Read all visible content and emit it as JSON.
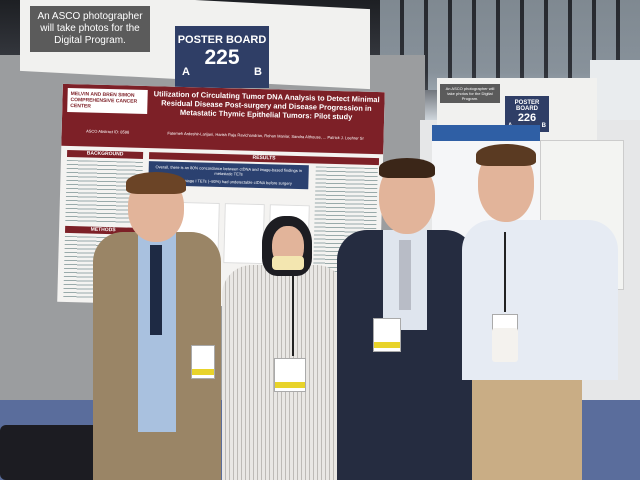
{
  "scene": {
    "description_colors": {
      "board": "#9b9d9f",
      "poster_maroon": "#7d2027",
      "sign_blue": "#2f3e66",
      "carpet": "#5a6d9c"
    }
  },
  "left_board": {
    "photographer_note": "An ASCO photographer will take photos for the Digital Program.",
    "sign_title": "POSTER BOARD",
    "sign_number": "225",
    "side_a": "A",
    "side_b": "B"
  },
  "right_board": {
    "photographer_note": "An ASCO photographer will take photos for the Digital Program.",
    "sign_title": "POSTER BOARD",
    "sign_number": "226",
    "side_a": "A",
    "side_b": "B"
  },
  "poster": {
    "institution": "MELVIN AND BREN SIMON COMPREHENSIVE CANCER CENTER",
    "abstract_id": "ASCO Abstract ID: 8598",
    "title": "Utilization of Circulating Tumor DNA Analysis to Detect Minimal Residual Disease Post-surgery and Disease Progression in Metastatic Thymic Epithelial Tumors: Pilot study",
    "authors": "Fatemeh Ardeshir-Larijani, Harish Raja Ravichandran, Rohan Maniar, Sandra Althouse, ... Patrick J. Loehrer Sr",
    "sections": [
      "BACKGROUND",
      "METHODS",
      "RESULTS"
    ],
    "conclusions": [
      "Overall, there is an 80% concordance between ctDNA and image-based findings in metastatic TETs",
      "Majority of stage I TETs (~80%) had undetectable ctDNA before surgery"
    ]
  }
}
